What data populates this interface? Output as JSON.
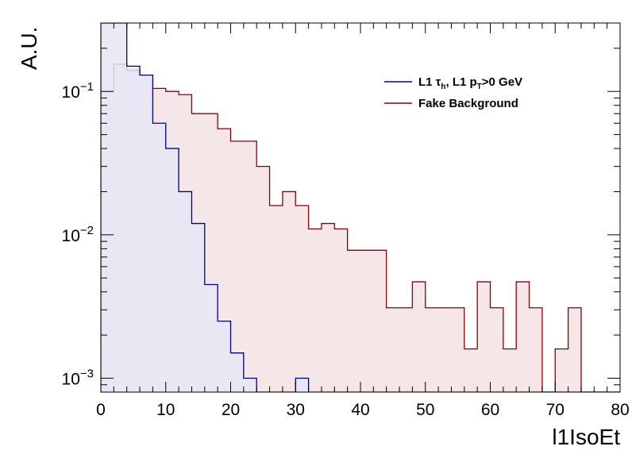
{
  "chart_data": {
    "type": "histogram",
    "xlabel": "l1IsoEt",
    "ylabel": "A.U.",
    "xlim": [
      0,
      80
    ],
    "ylim": [
      0.0008,
      0.3
    ],
    "yscale": "log",
    "bin_width": 2,
    "x_ticks": [
      0,
      10,
      20,
      30,
      40,
      50,
      60,
      70,
      80
    ],
    "x_tick_labels": [
      "0",
      "10",
      "20",
      "30",
      "40",
      "50",
      "60",
      "70",
      "80"
    ],
    "y_ticks": [
      0.001,
      0.01,
      0.1
    ],
    "y_tick_labels": [
      {
        "base": "10",
        "exp": "−3"
      },
      {
        "base": "10",
        "exp": "−2"
      },
      {
        "base": "10",
        "exp": "−1"
      }
    ],
    "legend": {
      "position": "top-right"
    },
    "series": [
      {
        "name": "Fake Background",
        "line_color": "#8b0000",
        "fill_color": "#f3e3e3",
        "legend_label": {
          "parts": [
            {
              "t": "Fake Background"
            }
          ]
        },
        "bin_edges_start": 0,
        "values": [
          0.1,
          0.155,
          0.14,
          0.13,
          0.105,
          0.1,
          0.095,
          0.07,
          0.07,
          0.055,
          0.045,
          0.045,
          0.03,
          0.016,
          0.02,
          0.016,
          0.011,
          0.012,
          0.011,
          0.0078,
          0.0078,
          0.0078,
          0.0031,
          0.0031,
          0.0047,
          0.0031,
          0.0031,
          0.0031,
          0.0016,
          0.0047,
          0.0031,
          0.0016,
          0.0047,
          0.0031,
          0.0,
          0.0016,
          0.0031,
          0.0,
          0.0,
          0.0,
          0.0,
          0.0,
          0.0,
          0.0,
          0.0,
          0.0,
          0.0,
          0.0,
          0.0,
          0.0,
          0.0,
          0.0,
          0.0,
          0.0,
          0.0,
          0.0,
          0.0,
          0.0,
          0.0,
          0.0,
          0.0,
          0.0,
          0.0,
          0.0,
          0.0,
          0.0,
          0.0,
          0.0,
          0.0,
          0.0,
          0.0,
          0.0,
          0.0,
          0.0,
          0.0,
          0.0,
          0.0,
          0.0,
          0.0,
          0.0
        ]
      },
      {
        "name": "L1 τh, L1 pT>0 GeV",
        "line_color": "#00008b",
        "fill_color": "#e6e6f5",
        "legend_label": {
          "parts": [
            {
              "t": "L1 τ"
            },
            {
              "t": "h",
              "sub": true
            },
            {
              "t": ", L1 p"
            },
            {
              "t": "T",
              "sub": true
            },
            {
              "t": ">0 GeV"
            }
          ]
        },
        "bin_edges_start": 0,
        "values": [
          0.35,
          0.35,
          0.15,
          0.13,
          0.06,
          0.04,
          0.02,
          0.012,
          0.0045,
          0.0025,
          0.0015,
          0.001,
          0.0,
          0.0,
          0.0,
          0.001,
          0.0,
          0.0,
          0.0,
          0.0,
          0.0,
          0.0,
          0.0,
          0.0,
          0.0,
          0.0,
          0.0,
          0.0,
          0.0,
          0.0,
          0.0,
          0.0,
          0.0,
          0.0,
          0.0,
          0.0,
          0.0,
          0.0,
          0.0,
          0.0
        ]
      }
    ]
  }
}
